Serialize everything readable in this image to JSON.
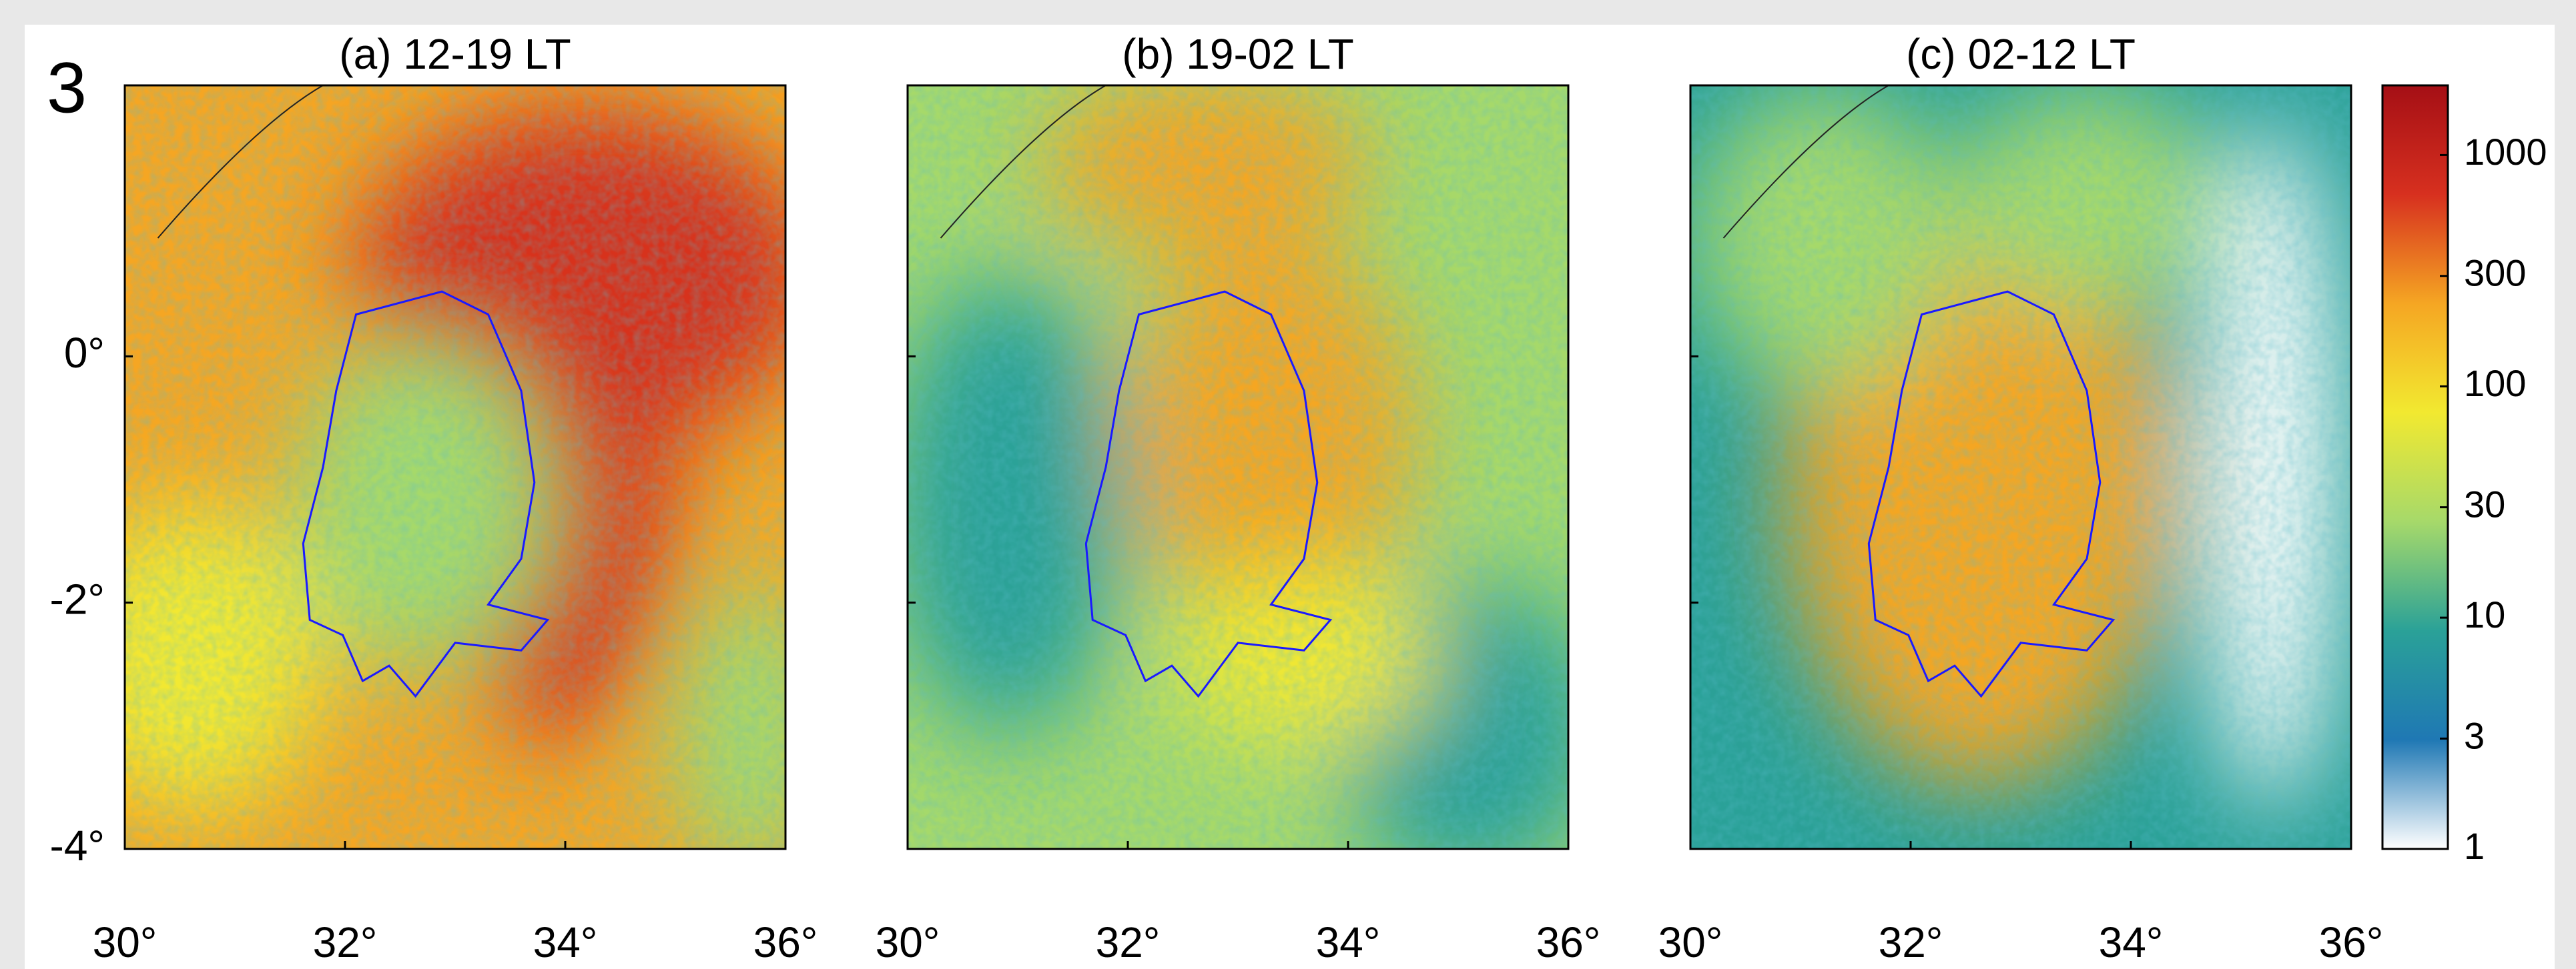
{
  "figure_label": "3",
  "panels": [
    {
      "title": "(a) 12-19 LT"
    },
    {
      "title": "(b) 19-02 LT"
    },
    {
      "title": "(c) 02-12 LT"
    }
  ],
  "xlim": [
    30,
    36
  ],
  "ylim": [
    -4,
    2.2
  ],
  "xticks": [
    {
      "value": 30,
      "label": "30°"
    },
    {
      "value": 32,
      "label": "32°"
    },
    {
      "value": 34,
      "label": "34°"
    },
    {
      "value": 36,
      "label": "36°"
    }
  ],
  "yticks": [
    {
      "value": 0,
      "label": "0°"
    },
    {
      "value": -2,
      "label": "-2°"
    },
    {
      "value": -4,
      "label": "-4°"
    }
  ],
  "colorbar": {
    "log": true,
    "clim": [
      1,
      2000
    ],
    "colormap": [
      "#ffffff",
      "#1f78b4",
      "#2aa198",
      "#a6d96a",
      "#f2e930",
      "#f5a623",
      "#d7301f",
      "#a50f15"
    ],
    "ticks": [
      1,
      3,
      10,
      30,
      100,
      300,
      1000
    ]
  }
}
